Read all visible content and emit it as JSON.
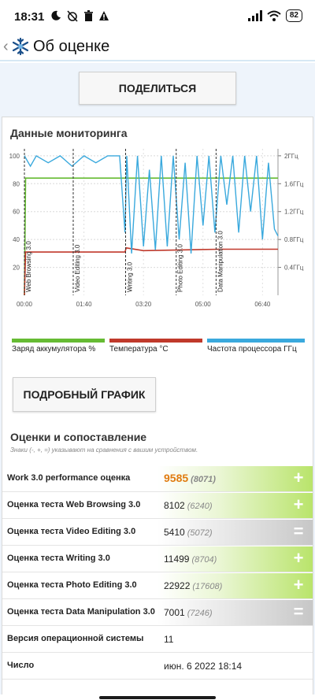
{
  "status": {
    "time": "18:31",
    "battery": "82"
  },
  "appbar": {
    "title": "Об оценке"
  },
  "share_label": "ПОДЕЛИТЬСЯ",
  "monitoring": {
    "title": "Данные мониторинга"
  },
  "chart_data": {
    "type": "line",
    "title": "",
    "x_ticks": [
      "00:00",
      "01:40",
      "03:20",
      "05:00",
      "06:40"
    ],
    "x_range_minutes": [
      0,
      426
    ],
    "y_left_ticks": [
      "20",
      "40",
      "60",
      "80",
      "100"
    ],
    "y_left_range": [
      0,
      105
    ],
    "y_right_ticks": [
      "0.4ГГц",
      "0.8ГГц",
      "1.2ГГц",
      "1.6ГГц",
      "2ГГц"
    ],
    "y_right_range_ghz": [
      0,
      2.1
    ],
    "grid": true,
    "test_markers": [
      {
        "label": "Web Browsing 3.0",
        "x_minutes": 0
      },
      {
        "label": "Video Editing 3.0",
        "x_minutes": 82
      },
      {
        "label": "Writing 3.0",
        "x_minutes": 170
      },
      {
        "label": "Photo Editing 3.0",
        "x_minutes": 255
      },
      {
        "label": "Data Manipulation 3.0",
        "x_minutes": 322
      }
    ],
    "series": [
      {
        "name": "Заряд аккумулятора %",
        "color": "#66bb33",
        "x": [
          0,
          2,
          169,
          171,
          426
        ],
        "y": [
          0,
          84,
          84,
          84,
          84
        ]
      },
      {
        "name": "Температура °C",
        "color": "#c0392b",
        "x": [
          0,
          2,
          60,
          169,
          171,
          200,
          330,
          426
        ],
        "y": [
          0,
          31,
          31,
          31,
          34,
          32,
          33,
          33
        ]
      },
      {
        "name": "Частота процессора ГГц",
        "color": "#3aa9dd",
        "x": [
          0,
          10,
          20,
          40,
          60,
          80,
          100,
          120,
          140,
          160,
          169,
          172,
          180,
          190,
          200,
          210,
          220,
          230,
          240,
          250,
          260,
          270,
          280,
          290,
          300,
          310,
          320,
          330,
          340,
          350,
          360,
          370,
          380,
          390,
          400,
          410,
          420,
          426
        ],
        "y": [
          2.0,
          1.85,
          2.0,
          1.9,
          2.0,
          1.85,
          2.0,
          1.9,
          2.0,
          2.0,
          0.9,
          2.0,
          0.6,
          2.0,
          0.7,
          1.8,
          0.65,
          2.0,
          0.7,
          2.0,
          0.8,
          1.9,
          0.6,
          2.0,
          1.0,
          2.0,
          0.9,
          2.0,
          1.3,
          2.0,
          0.9,
          2.0,
          1.2,
          2.0,
          0.8,
          1.9,
          0.95,
          0.85
        ]
      }
    ]
  },
  "detail_label": "ПОДРОБНЫЙ ГРАФИК",
  "scores": {
    "title": "Оценки и сопоставление",
    "note": "Знаки (-, +, =) указывают на сравнения с вашим устройством.",
    "rows": [
      {
        "label": "Work 3.0 performance оценка",
        "value": "9585",
        "compare": "(8071)",
        "sign": "+",
        "sign_color": "#ffffff"
      },
      {
        "label": "Оценка теста Web Browsing 3.0",
        "value": "8102",
        "compare": "(6240)",
        "sign": "+"
      },
      {
        "label": "Оценка теста Video Editing 3.0",
        "value": "5410",
        "compare": "(5072)",
        "sign": "="
      },
      {
        "label": "Оценка теста Writing 3.0",
        "value": "11499",
        "compare": "(8704)",
        "sign": "+"
      },
      {
        "label": "Оценка теста Photo Editing 3.0",
        "value": "22922",
        "compare": "(17608)",
        "sign": "+"
      },
      {
        "label": "Оценка теста Data Manipulation 3.0",
        "value": "7001",
        "compare": "(7246)",
        "sign": "="
      },
      {
        "label": "Версия операционной системы",
        "value": "11"
      },
      {
        "label": "Число",
        "value": "июн. 6 2022 18:14"
      }
    ]
  },
  "colors": {
    "accent_green": "#b9e46b",
    "neutral_gray": "#c7c7c7",
    "score_highlight": "#e07b10"
  }
}
